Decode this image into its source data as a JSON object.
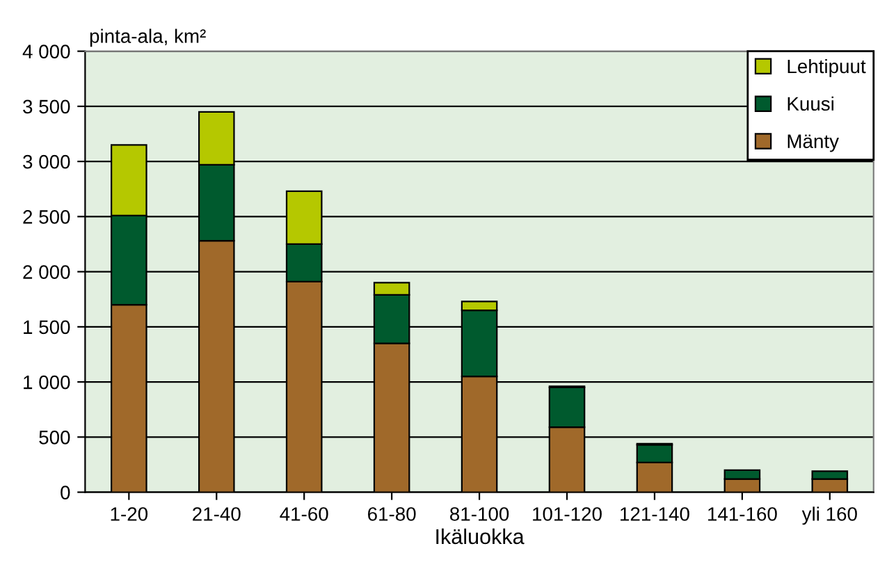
{
  "chart_data": {
    "type": "bar",
    "stacked": true,
    "ylabel": "pinta-ala, km²",
    "xlabel": "Ikäluokka",
    "categories": [
      "1-20",
      "21-40",
      "41-60",
      "61-80",
      "81-100",
      "101-120",
      "121-140",
      "141-160",
      "yli 160"
    ],
    "series": [
      {
        "name": "Mänty",
        "color": "#a0692a",
        "values": [
          1700,
          2280,
          1910,
          1350,
          1050,
          590,
          270,
          120,
          120
        ]
      },
      {
        "name": "Kuusi",
        "color": "#005a2e",
        "values": [
          810,
          690,
          340,
          440,
          600,
          360,
          160,
          80,
          70
        ]
      },
      {
        "name": "Lehtipuut",
        "color": "#b5c800",
        "values": [
          640,
          480,
          480,
          110,
          80,
          10,
          10,
          null,
          null
        ]
      }
    ],
    "ylim": [
      0,
      4000
    ],
    "yticks": [
      0,
      500,
      {
        "value": 1000,
        "label": "1 000"
      },
      {
        "value": 1500,
        "label": "1 500"
      },
      {
        "value": 2000,
        "label": "2 000"
      },
      {
        "value": 2500,
        "label": "2 500"
      },
      {
        "value": 3000,
        "label": "3 000"
      },
      {
        "value": 3500,
        "label": "3 500"
      },
      {
        "value": 4000,
        "label": "4 000"
      }
    ],
    "grid": "y",
    "legend": "top right"
  }
}
